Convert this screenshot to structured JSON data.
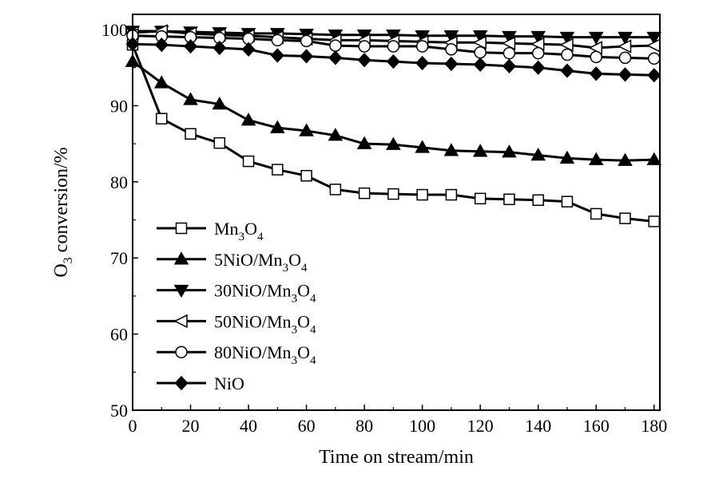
{
  "chart_data": {
    "type": "line",
    "title": "",
    "xlabel": "Time on stream/min",
    "ylabel": {
      "prefix": "O",
      "sub": "3",
      "suffix": " conversion/%"
    },
    "xlim": [
      0,
      182
    ],
    "ylim": [
      50,
      102
    ],
    "xticks": [
      0,
      20,
      40,
      60,
      80,
      100,
      120,
      140,
      160,
      180
    ],
    "yticks": [
      50,
      60,
      70,
      80,
      90,
      100
    ],
    "grid": false,
    "legend_position": "lower-left",
    "series": [
      {
        "name": [
          {
            "t": "Mn"
          },
          {
            "t": "3",
            "sub": true
          },
          {
            "t": "O"
          },
          {
            "t": "4",
            "sub": true
          }
        ],
        "marker": "square-open",
        "x": [
          0,
          10,
          20,
          30,
          40,
          50,
          60,
          70,
          80,
          90,
          100,
          110,
          120,
          130,
          140,
          150,
          160,
          170,
          180
        ],
        "y": [
          98.0,
          88.3,
          86.3,
          85.1,
          82.7,
          81.6,
          80.8,
          79.0,
          78.5,
          78.4,
          78.3,
          78.3,
          77.8,
          77.7,
          77.6,
          77.4,
          75.8,
          75.2,
          74.8
        ]
      },
      {
        "name": [
          {
            "t": "5NiO/Mn"
          },
          {
            "t": "3",
            "sub": true
          },
          {
            "t": "O"
          },
          {
            "t": "4",
            "sub": true
          }
        ],
        "marker": "triangle-up-filled",
        "x": [
          0,
          10,
          20,
          30,
          40,
          50,
          60,
          70,
          80,
          90,
          100,
          110,
          120,
          130,
          140,
          150,
          160,
          170,
          180
        ],
        "y": [
          95.8,
          93.0,
          90.8,
          90.2,
          88.1,
          87.1,
          86.7,
          86.1,
          85.0,
          84.9,
          84.5,
          84.1,
          84.0,
          83.9,
          83.5,
          83.1,
          82.9,
          82.8,
          82.9
        ]
      },
      {
        "name": [
          {
            "t": "30NiO/Mn"
          },
          {
            "t": "3",
            "sub": true
          },
          {
            "t": "O"
          },
          {
            "t": "4",
            "sub": true
          }
        ],
        "marker": "triangle-down-filled",
        "x": [
          0,
          10,
          20,
          30,
          40,
          50,
          60,
          70,
          80,
          90,
          100,
          110,
          120,
          130,
          140,
          150,
          160,
          170,
          180
        ],
        "y": [
          99.8,
          99.8,
          99.7,
          99.6,
          99.5,
          99.5,
          99.4,
          99.3,
          99.3,
          99.3,
          99.2,
          99.2,
          99.2,
          99.1,
          99.1,
          99.0,
          99.0,
          99.0,
          99.0
        ]
      },
      {
        "name": [
          {
            "t": "50NiO/Mn"
          },
          {
            "t": "3",
            "sub": true
          },
          {
            "t": "O"
          },
          {
            "t": "4",
            "sub": true
          }
        ],
        "marker": "triangle-left-open",
        "x": [
          0,
          10,
          20,
          30,
          40,
          50,
          60,
          70,
          80,
          90,
          100,
          110,
          120,
          130,
          140,
          150,
          160,
          170,
          180
        ],
        "y": [
          99.6,
          99.8,
          99.5,
          99.3,
          99.2,
          99.0,
          98.8,
          98.6,
          98.6,
          98.5,
          98.4,
          98.3,
          98.3,
          98.2,
          98.1,
          98.0,
          97.6,
          97.8,
          97.9
        ]
      },
      {
        "name": [
          {
            "t": "80NiO/Mn"
          },
          {
            "t": "3",
            "sub": true
          },
          {
            "t": "O"
          },
          {
            "t": "4",
            "sub": true
          }
        ],
        "marker": "circle-open",
        "x": [
          0,
          10,
          20,
          30,
          40,
          50,
          60,
          70,
          80,
          90,
          100,
          110,
          120,
          130,
          140,
          150,
          160,
          170,
          180
        ],
        "y": [
          99.2,
          99.1,
          99.0,
          98.9,
          98.8,
          98.6,
          98.5,
          97.9,
          97.8,
          97.8,
          97.8,
          97.4,
          97.0,
          96.9,
          96.9,
          96.7,
          96.4,
          96.3,
          96.2
        ]
      },
      {
        "name": [
          {
            "t": "NiO"
          }
        ],
        "marker": "diamond-filled",
        "x": [
          0,
          10,
          20,
          30,
          40,
          50,
          60,
          70,
          80,
          90,
          100,
          110,
          120,
          130,
          140,
          150,
          160,
          170,
          180
        ],
        "y": [
          98.1,
          98.0,
          97.8,
          97.6,
          97.4,
          96.6,
          96.5,
          96.3,
          96.0,
          95.8,
          95.6,
          95.5,
          95.4,
          95.2,
          95.0,
          94.6,
          94.2,
          94.1,
          94.0
        ]
      }
    ]
  }
}
